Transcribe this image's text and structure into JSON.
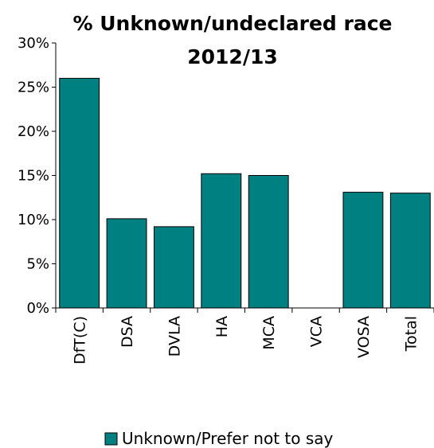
{
  "chart_data": {
    "type": "bar",
    "title_line1": "% Unknown/undeclared race",
    "title_line2": "2012/13",
    "categories": [
      "DfT(C)",
      "DSA",
      "DVLA",
      "HA",
      "MCA",
      "VCA",
      "VOSA",
      "Total"
    ],
    "series": [
      {
        "name": "Unknown/Prefer not to say",
        "values": [
          26,
          10.1,
          9.2,
          15.2,
          15.0,
          0,
          13.1,
          13.0
        ],
        "color": "#008080"
      }
    ],
    "ylim": [
      0,
      30
    ],
    "y_ticks": [
      0,
      5,
      10,
      15,
      20,
      25,
      30
    ],
    "y_tick_labels": [
      "0%",
      "5%",
      "10%",
      "15%",
      "20%",
      "25%",
      "30%"
    ],
    "grid": false,
    "legend_position": "bottom"
  }
}
